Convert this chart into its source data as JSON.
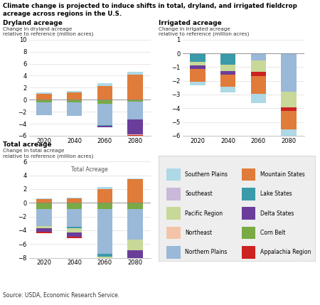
{
  "title": "Climate change is projected to induce shifts in total, dryland, and irrigated fieldcrop\nacreage across regions in the U.S.",
  "source": "Source: USDA, Economic Research Service.",
  "years": [
    "2020",
    "2040",
    "2060",
    "2080"
  ],
  "colors": {
    "Southern Plains": "#add8e6",
    "Mountain States": "#e07b39",
    "Southeast": "#c9b8d8",
    "Lake States": "#3a9aaa",
    "Pacific Region": "#c8d898",
    "Delta States": "#6a3d9a",
    "Northeast": "#f4c4a8",
    "Corn Belt": "#7aaa44",
    "Northern Plains": "#9ab8d8",
    "Appalachia Region": "#cc2222"
  },
  "dryland": {
    "pos_order": [
      "Southern Plains",
      "Mountain States",
      "Pacific Region",
      "Northeast",
      "Corn Belt",
      "Southeast"
    ],
    "neg_order": [
      "Northern Plains",
      "Corn Belt",
      "Pacific Region",
      "Lake States",
      "Delta States",
      "Northeast",
      "Appalachia Region"
    ],
    "2020": {
      "Northern Plains": -2.2,
      "Lake States": 0.0,
      "Pacific Region": 0.0,
      "Northeast": 0.0,
      "Southeast": 0.0,
      "Corn Belt": -0.4,
      "Mountain States": 1.0,
      "Southern Plains": 0.25,
      "Delta States": 0.0,
      "Appalachia Region": 0.0
    },
    "2040": {
      "Northern Plains": -2.3,
      "Lake States": 0.0,
      "Pacific Region": 0.0,
      "Northeast": 0.0,
      "Southeast": 0.0,
      "Corn Belt": -0.4,
      "Mountain States": 1.2,
      "Southern Plains": 0.3,
      "Delta States": 0.0,
      "Appalachia Region": 0.0
    },
    "2060": {
      "Northern Plains": -3.5,
      "Lake States": -0.1,
      "Pacific Region": 0.0,
      "Northeast": 0.0,
      "Southeast": 0.0,
      "Corn Belt": -0.7,
      "Mountain States": 2.3,
      "Southern Plains": 0.5,
      "Delta States": -0.3,
      "Appalachia Region": 0.0
    },
    "2080": {
      "Northern Plains": -3.0,
      "Lake States": 0.0,
      "Pacific Region": 0.0,
      "Northeast": -0.1,
      "Southeast": 0.0,
      "Corn Belt": -0.3,
      "Mountain States": 4.2,
      "Southern Plains": 0.5,
      "Delta States": -2.5,
      "Appalachia Region": -0.1
    }
  },
  "irrigated": {
    "2020": {
      "Northern Plains": 0.0,
      "Lake States": -0.6,
      "Pacific Region": -0.3,
      "Northeast": 0.0,
      "Southeast": 0.0,
      "Corn Belt": 0.0,
      "Mountain States": -0.9,
      "Southern Plains": -0.3,
      "Delta States": -0.25,
      "Appalachia Region": 0.0
    },
    "2040": {
      "Northern Plains": 0.0,
      "Lake States": -0.85,
      "Pacific Region": -0.45,
      "Northeast": 0.0,
      "Southeast": 0.0,
      "Corn Belt": 0.0,
      "Mountain States": -0.9,
      "Southern Plains": -0.4,
      "Delta States": -0.25,
      "Appalachia Region": 0.0
    },
    "2060": {
      "Northern Plains": -0.5,
      "Lake States": 0.0,
      "Pacific Region": -0.85,
      "Northeast": 0.0,
      "Southeast": 0.0,
      "Corn Belt": 0.0,
      "Mountain States": -1.3,
      "Southern Plains": -0.65,
      "Delta States": 0.0,
      "Appalachia Region": -0.3
    },
    "2080": {
      "Northern Plains": -2.8,
      "Lake States": 0.0,
      "Pacific Region": -1.15,
      "Northeast": 0.0,
      "Southeast": 0.0,
      "Corn Belt": 0.0,
      "Mountain States": -1.35,
      "Southern Plains": -0.55,
      "Delta States": 0.0,
      "Appalachia Region": -0.25
    }
  },
  "total": {
    "2020": {
      "Northern Plains": -2.5,
      "Lake States": 0.0,
      "Pacific Region": -0.3,
      "Northeast": 0.0,
      "Southeast": 0.0,
      "Corn Belt": -0.9,
      "Mountain States": 0.55,
      "Southern Plains": 0.1,
      "Delta States": -0.55,
      "Appalachia Region": -0.2
    },
    "2040": {
      "Northern Plains": -2.6,
      "Lake States": -0.15,
      "Pacific Region": -0.7,
      "Northeast": 0.0,
      "Southeast": 0.0,
      "Corn Belt": -0.9,
      "Mountain States": 0.65,
      "Southern Plains": 0.1,
      "Delta States": -0.55,
      "Appalachia Region": -0.2
    },
    "2060": {
      "Northern Plains": -6.5,
      "Lake States": -0.4,
      "Pacific Region": -1.1,
      "Northeast": 0.0,
      "Southeast": 0.0,
      "Corn Belt": -0.9,
      "Mountain States": 2.0,
      "Southern Plains": 0.3,
      "Delta States": -0.55,
      "Appalachia Region": -0.3
    },
    "2080": {
      "Northern Plains": -4.5,
      "Lake States": 0.0,
      "Pacific Region": -1.5,
      "Northeast": -0.1,
      "Southeast": 0.0,
      "Corn Belt": -0.9,
      "Mountain States": 3.5,
      "Southern Plains": 0.1,
      "Delta States": -2.5,
      "Appalachia Region": -0.4
    }
  },
  "dryland_ylim": [
    -6,
    10
  ],
  "dryland_yticks": [
    -6,
    -4,
    -2,
    0,
    2,
    4,
    6,
    8,
    10
  ],
  "irrigated_ylim": [
    -6,
    1
  ],
  "irrigated_yticks": [
    -6,
    -5,
    -4,
    -3,
    -2,
    -1,
    0,
    1
  ],
  "total_ylim": [
    -8,
    6
  ],
  "total_yticks": [
    -8,
    -6,
    -4,
    -2,
    0,
    2,
    4,
    6
  ],
  "legend_order": [
    "Southern Plains",
    "Mountain States",
    "Southeast",
    "Lake States",
    "Pacific Region",
    "Delta States",
    "Northeast",
    "Corn Belt",
    "Northern Plains",
    "Appalachia Region"
  ],
  "stack_order_pos": [
    "Corn Belt",
    "Mountain States",
    "Southern Plains",
    "Pacific Region",
    "Northeast",
    "Southeast",
    "Lake States",
    "Appalachia Region",
    "Delta States",
    "Northern Plains"
  ],
  "stack_order_neg": [
    "Corn Belt",
    "Northern Plains",
    "Lake States",
    "Pacific Region",
    "Southeast",
    "Delta States",
    "Northeast",
    "Appalachia Region",
    "Mountain States",
    "Southern Plains"
  ]
}
